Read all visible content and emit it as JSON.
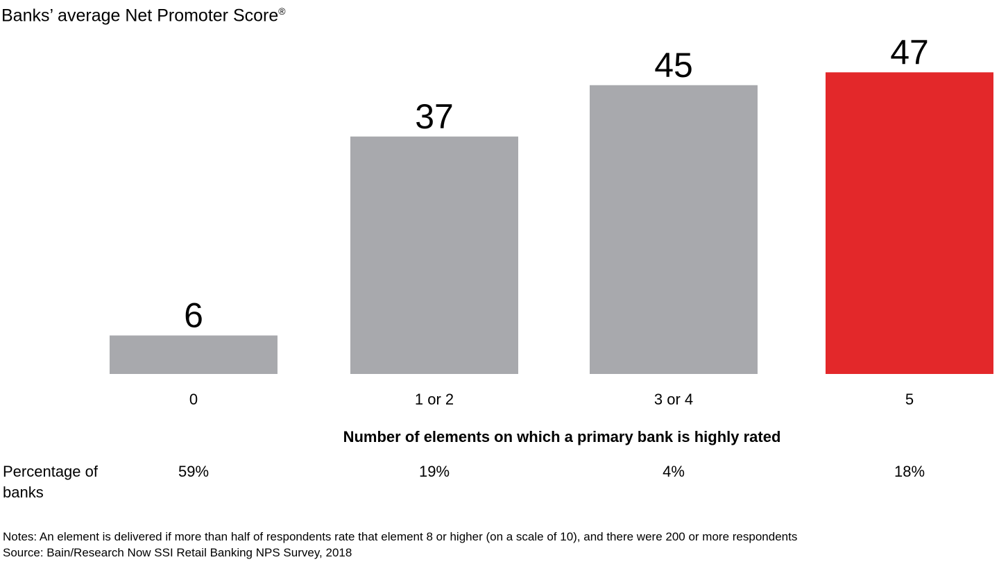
{
  "chart_data": {
    "type": "bar",
    "title": "Banks’ average Net Promoter Score",
    "title_mark": "®",
    "categories": [
      "0",
      "1 or 2",
      "3 or 4",
      "5"
    ],
    "values": [
      6,
      37,
      45,
      47
    ],
    "xlabel": "Number of elements on which a primary bank is highly rated",
    "ylabel": "",
    "ylim": [
      0,
      50
    ],
    "grid": false,
    "colors": [
      "#a8a9ad",
      "#a8a9ad",
      "#a8a9ad",
      "#e3282a"
    ],
    "row_label": "Percentage of banks",
    "row_values": [
      "59%",
      "19%",
      "4%",
      "18%"
    ]
  },
  "notes": "Notes: An element is delivered if more than half of respondents rate that element 8 or higher (on a scale of 10), and there were 200 or more respondents",
  "source": "Source: Bain/Research Now SSI Retail Banking NPS Survey, 2018"
}
